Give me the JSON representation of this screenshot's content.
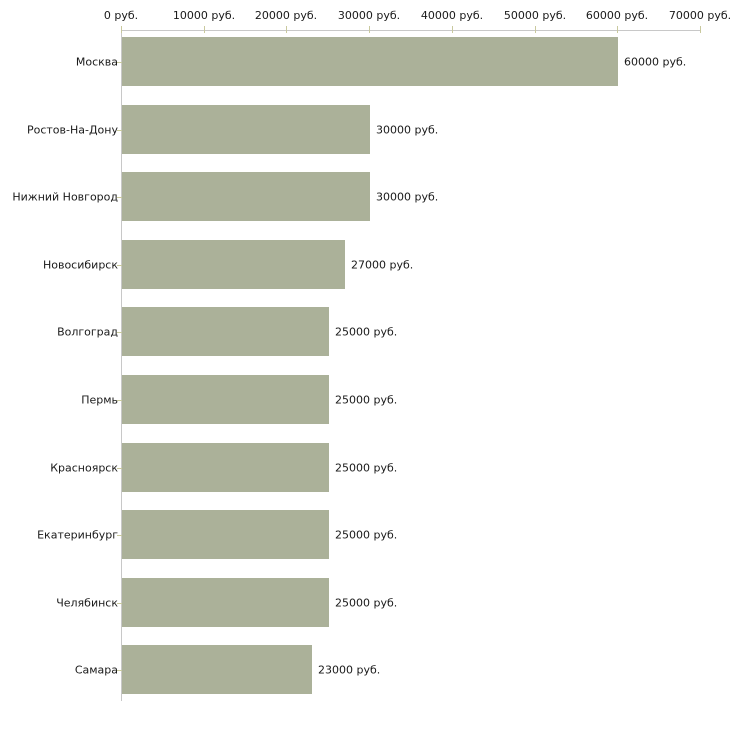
{
  "chart_data": {
    "type": "bar",
    "orientation": "horizontal",
    "title": "",
    "xlabel": "",
    "ylabel": "",
    "grid": false,
    "legend": false,
    "categories": [
      "Москва",
      "Ростов-На-Дону",
      "Нижний Новгород",
      "Новосибирск",
      "Волгоград",
      "Пермь",
      "Красноярск",
      "Екатеринбург",
      "Челябинск",
      "Самара"
    ],
    "values": [
      60000,
      30000,
      30000,
      27000,
      25000,
      25000,
      25000,
      25000,
      25000,
      23000
    ],
    "value_labels": [
      "60000 руб.",
      "30000 руб.",
      "30000 руб.",
      "27000 руб.",
      "25000 руб.",
      "25000 руб.",
      "25000 руб.",
      "25000 руб.",
      "25000 руб.",
      "23000 руб."
    ],
    "x_axis": {
      "position": "top",
      "min": 0,
      "max": 70000,
      "tick_step": 10000,
      "ticks": [
        0,
        10000,
        20000,
        30000,
        40000,
        50000,
        60000,
        70000
      ],
      "tick_labels": [
        "0 руб.",
        "10000 руб.",
        "20000 руб.",
        "30000 руб.",
        "40000 руб.",
        "50000 руб.",
        "60000 руб.",
        "70000 руб."
      ]
    },
    "colors": {
      "bar": "#abb199",
      "axis_line": "#c8c8c8",
      "tick_mark": "#c9c99e",
      "text": "#1a1a1a",
      "background": "#ffffff"
    }
  }
}
